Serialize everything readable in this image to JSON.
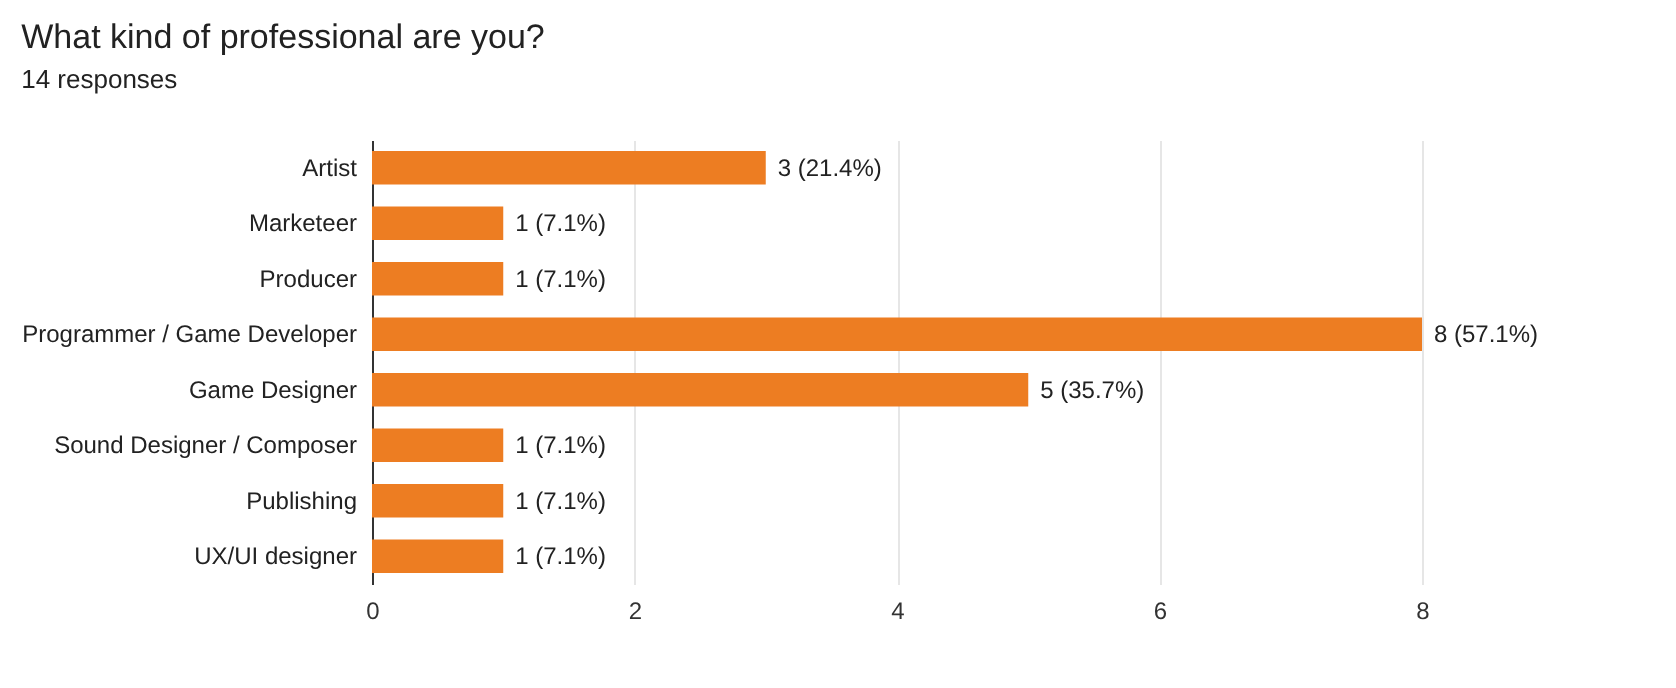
{
  "chart_data": {
    "type": "bar",
    "orientation": "horizontal",
    "title": "What kind of professional are you?",
    "subtitle": "14 responses",
    "categories": [
      "Artist",
      "Marketeer",
      "Producer",
      "Programmer / Game Developer",
      "Game Designer",
      "Sound Designer / Composer",
      "Publishing",
      "UX/UI designer"
    ],
    "values": [
      3,
      1,
      1,
      8,
      5,
      1,
      1,
      1
    ],
    "value_labels": [
      "3 (21.4%)",
      "1 (7.1%)",
      "1 (7.1%)",
      "8 (57.1%)",
      "5 (35.7%)",
      "1 (7.1%)",
      "1 (7.1%)",
      "1 (7.1%)"
    ],
    "color": "#ed7d22",
    "xlim": [
      0,
      8
    ],
    "xticks": [
      0,
      2,
      4,
      6,
      8
    ],
    "grid": "x"
  }
}
